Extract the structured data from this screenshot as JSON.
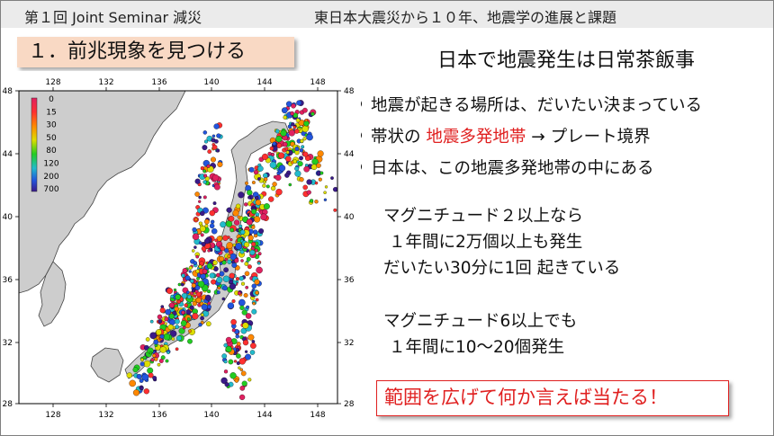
{
  "header": {
    "seminar": "第１回 Joint Seminar 減災",
    "topic": "東日本大震災から１０年、地震学の進展と課題"
  },
  "section_title": "１．前兆現象を見つける",
  "headline": "日本で地震発生は日常茶飯事",
  "bullets": [
    {
      "text": "地震が起きる場所は、だいたい決まっている"
    },
    {
      "pre": "帯状の ",
      "highlight": "地震多発地帯",
      "post": " → プレート境界"
    },
    {
      "text": "日本は、この地震多発地帯の中にある"
    }
  ],
  "para1": [
    "マグニチュード２以上なら",
    "１年間に2万個以上も発生",
    "だいたい30分に1回 起きている"
  ],
  "para2": [
    "マグニチュード6以上でも",
    "１年間に10〜20個発生"
  ],
  "callout": "範囲を広げて何か言えば当たる！",
  "map": {
    "x_ticks": [
      "128",
      "132",
      "136",
      "140",
      "144",
      "148"
    ],
    "y_ticks": [
      "48",
      "44",
      "40",
      "36",
      "32",
      "28"
    ],
    "depth_scale": [
      "0",
      "15",
      "30",
      "50",
      "80",
      "120",
      "200",
      "700"
    ],
    "colors": {
      "land": "#cdcdcd",
      "sea": "#ffffff",
      "highlight": "#e02020"
    }
  }
}
